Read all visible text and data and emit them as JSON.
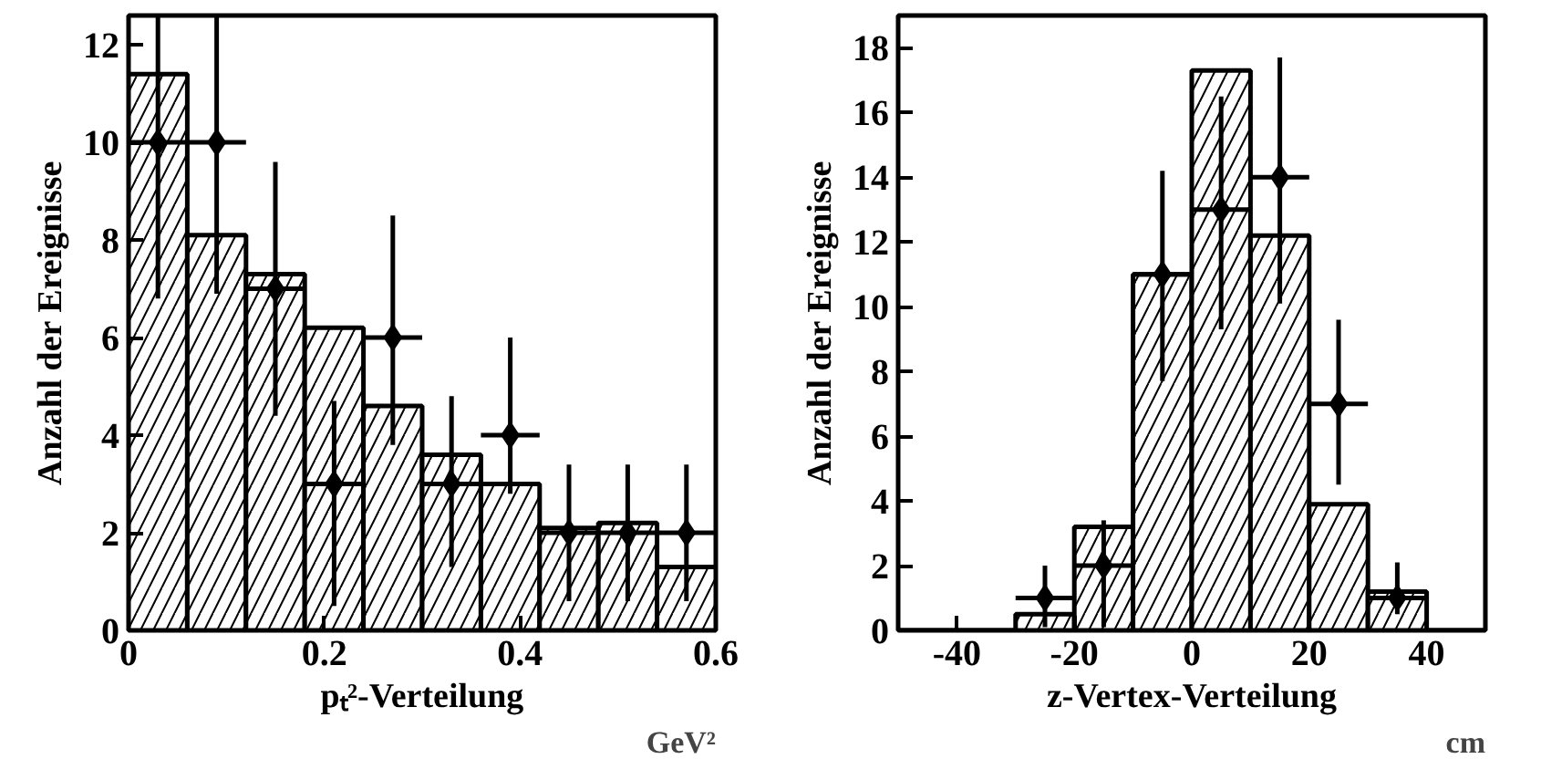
{
  "chart_data": [
    {
      "type": "histogram",
      "xlabel": "pₜ²-Verteilung",
      "ylabel": "Anzahl der Ereignisse",
      "annotations": [
        "GeV²"
      ],
      "xlim": [
        0,
        0.6
      ],
      "ylim": [
        0,
        12.6
      ],
      "xticks": [
        0,
        0.2,
        0.4,
        0.6
      ],
      "yticks": [
        0,
        2,
        4,
        6,
        8,
        10,
        12
      ],
      "grid": false,
      "marker": "diamond",
      "series": [
        {
          "type": "histogram",
          "color": "#000000",
          "bins": [
            0,
            0.06,
            0.12,
            0.18,
            0.24,
            0.3,
            0.36,
            0.42,
            0.48,
            0.54,
            0.6
          ],
          "values": [
            11.4,
            8.1,
            7.3,
            6.2,
            4.6,
            3.6,
            3.0,
            2.1,
            2.2,
            1.3
          ]
        },
        {
          "type": "scatter",
          "color": "#000000",
          "x": [
            0.03,
            0.09,
            0.15,
            0.21,
            0.27,
            0.33,
            0.39,
            0.45,
            0.51,
            0.57
          ],
          "values": [
            10,
            10,
            7,
            3,
            6,
            3,
            4,
            2,
            2,
            2
          ],
          "errors": [
            [
              6.8,
              12.6
            ],
            [
              6.9,
              12.6
            ],
            [
              4.4,
              9.6
            ],
            [
              0.5,
              4.7
            ],
            [
              3.8,
              8.5
            ],
            [
              1.3,
              4.8
            ],
            [
              2.8,
              6.0
            ],
            [
              0.6,
              3.4
            ],
            [
              0.6,
              3.4
            ],
            [
              0.6,
              3.4
            ]
          ],
          "xerrors": [
            0.03,
            0.03,
            0.03,
            0.03,
            0.03,
            0.03,
            0.03,
            0.03,
            0.03,
            0.03
          ]
        }
      ]
    },
    {
      "type": "histogram",
      "xlabel": "z-Vertex-Verteilung",
      "ylabel": "Anzahl der Ereignisse",
      "annotations": [
        "cm"
      ],
      "xlim": [
        -50,
        50
      ],
      "ylim": [
        0,
        19
      ],
      "xticks": [
        -40,
        -20,
        0,
        20,
        40
      ],
      "yticks": [
        0,
        2,
        4,
        6,
        8,
        10,
        12,
        14,
        16,
        18
      ],
      "grid": false,
      "marker": "diamond",
      "series": [
        {
          "type": "histogram",
          "color": "#000000",
          "bins": [
            -50,
            -40,
            -30,
            -20,
            -10,
            0,
            10,
            20,
            30,
            40,
            50
          ],
          "values": [
            0,
            0,
            0.5,
            3.2,
            11,
            17.3,
            12.2,
            3.9,
            1.2,
            0
          ]
        },
        {
          "type": "scatter",
          "color": "#000000",
          "x": [
            -25,
            -15,
            -5,
            5,
            15,
            25,
            35
          ],
          "values": [
            1,
            2,
            11,
            13,
            14,
            7,
            1
          ],
          "errors": [
            [
              0.1,
              2.0
            ],
            [
              0.1,
              3.4
            ],
            [
              7.7,
              14.2
            ],
            [
              9.3,
              16.5
            ],
            [
              10.1,
              17.7
            ],
            [
              4.5,
              9.6
            ],
            [
              0.5,
              2.1
            ]
          ],
          "xerrors": [
            5,
            5,
            5,
            5,
            5,
            5,
            5
          ]
        }
      ]
    }
  ]
}
